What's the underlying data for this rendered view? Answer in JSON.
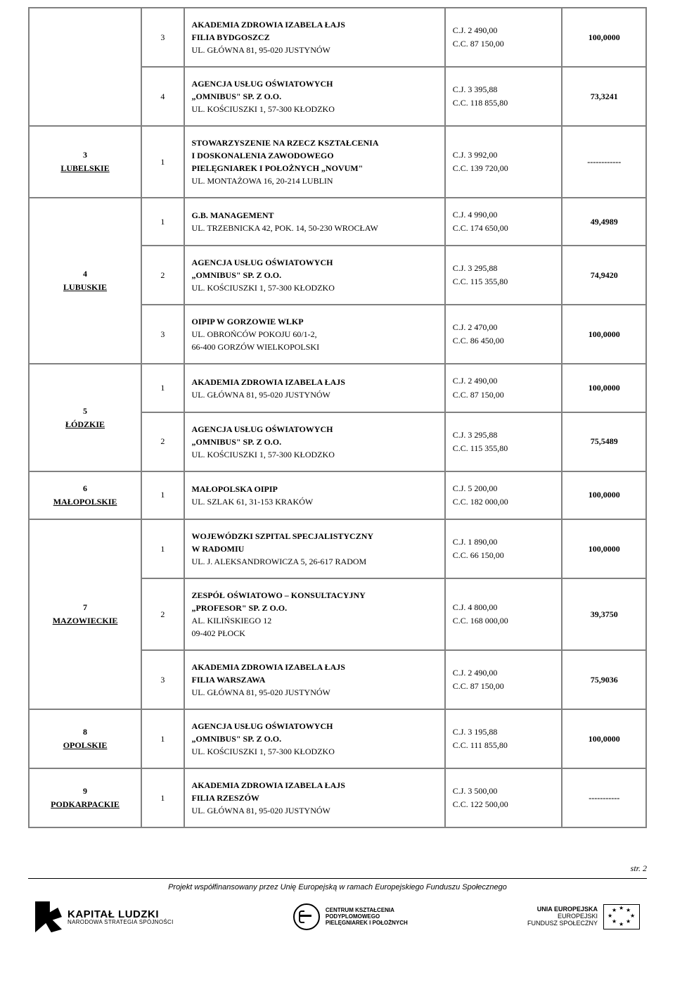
{
  "regions": [
    {
      "num": "",
      "name": "",
      "rows": [
        {
          "idx": "3",
          "desc_bold": [
            "AKADEMIA ZDROWIA IZABELA ŁAJS",
            "FILIA BYDGOSZCZ"
          ],
          "desc_addr": [
            "UL. GŁÓWNA 81, 95-020 JUSTYNÓW"
          ],
          "cj": "C.J.  2 490,00",
          "cc": "C.C. 87 150,00",
          "score": "100,0000"
        },
        {
          "idx": "4",
          "desc_bold": [
            "AGENCJA USŁUG OŚWIATOWYCH",
            "„OMNIBUS\" SP. Z O.O."
          ],
          "desc_addr": [
            "UL. KOŚCIUSZKI 1, 57-300 KŁODZKO"
          ],
          "cj": "C.J.  3 395,88",
          "cc": "C.C. 118 855,80",
          "score": "73,3241"
        }
      ]
    },
    {
      "num": "3",
      "name": "LUBELSKIE",
      "rows": [
        {
          "idx": "1",
          "desc_bold": [
            "STOWARZYSZENIE NA RZECZ KSZTAŁCENIA",
            "I DOSKONALENIA ZAWODOWEGO",
            "PIELĘGNIAREK I POŁOŻNYCH „NOVUM\""
          ],
          "desc_addr": [
            "UL. MONTAŻOWA 16, 20-214 LUBLIN"
          ],
          "cj": "C.J.  3 992,00",
          "cc": "C.C. 139 720,00",
          "score": "------------"
        }
      ]
    },
    {
      "num": "4",
      "name": "LUBUSKIE",
      "rows": [
        {
          "idx": "1",
          "desc_bold": [
            "G.B. MANAGEMENT"
          ],
          "desc_addr": [
            "UL. TRZEBNICKA 42, POK. 14, 50-230 WROCŁAW"
          ],
          "cj": "C.J.  4 990,00",
          "cc": "C.C. 174 650,00",
          "score": "49,4989"
        },
        {
          "idx": "2",
          "desc_bold": [
            "AGENCJA USŁUG OŚWIATOWYCH",
            "„OMNIBUS\" SP. Z O.O."
          ],
          "desc_addr": [
            "UL. KOŚCIUSZKI 1, 57-300 KŁODZKO"
          ],
          "cj": "C.J.  3 295,88",
          "cc": "C.C. 115 355,80",
          "score": "74,9420"
        },
        {
          "idx": "3",
          "desc_bold": [
            "OIPIP W GORZOWIE WLKP"
          ],
          "desc_addr": [
            "UL. OBROŃCÓW POKOJU 60/1-2,",
            "66-400 GORZÓW WIELKOPOLSKI"
          ],
          "cj": "C.J.  2 470,00",
          "cc": "C.C. 86 450,00",
          "score": "100,0000"
        }
      ]
    },
    {
      "num": "5",
      "name": "ŁÓDZKIE",
      "rows": [
        {
          "idx": "1",
          "desc_bold": [
            "AKADEMIA ZDROWIA IZABELA ŁAJS"
          ],
          "desc_addr": [
            "UL. GŁÓWNA 81, 95-020 JUSTYNÓW"
          ],
          "cj": "C.J.  2 490,00",
          "cc": "C.C. 87 150,00",
          "score": "100,0000"
        },
        {
          "idx": "2",
          "desc_bold": [
            "AGENCJA USŁUG OŚWIATOWYCH",
            "„OMNIBUS\" SP. Z O.O."
          ],
          "desc_addr": [
            "UL. KOŚCIUSZKI 1, 57-300 KŁODZKO"
          ],
          "cj": "C.J.  3 295,88",
          "cc": "C.C. 115 355,80",
          "score": "75,5489"
        }
      ]
    },
    {
      "num": "6",
      "name": "MAŁOPOLSKIE",
      "rows": [
        {
          "idx": "1",
          "desc_bold": [
            "MAŁOPOLSKA OIPIP"
          ],
          "desc_addr": [
            "UL. SZLAK 61, 31-153 KRAKÓW"
          ],
          "cj": "C.J.  5 200,00",
          "cc": "C.C. 182 000,00",
          "score": "100,0000"
        }
      ]
    },
    {
      "num": "7",
      "name": "MAZOWIECKIE",
      "rows": [
        {
          "idx": "1",
          "desc_bold": [
            "WOJEWÓDZKI SZPITAL SPECJALISTYCZNY",
            "W RADOMIU"
          ],
          "desc_addr": [
            "UL. J. ALEKSANDROWICZA 5, 26-617 RADOM"
          ],
          "cj": "C.J.  1 890,00",
          "cc": "C.C. 66 150,00",
          "score": "100,0000"
        },
        {
          "idx": "2",
          "desc_bold": [
            "ZESPÓŁ OŚWIATOWO – KONSULTACYJNY",
            "„PROFESOR\" SP. Z O.O."
          ],
          "desc_addr": [
            "AL. KILIŃSKIEGO 12",
            "09-402 PŁOCK"
          ],
          "cj": "C.J.  4 800,00",
          "cc": "C.C. 168 000,00",
          "score": "39,3750"
        },
        {
          "idx": "3",
          "desc_bold": [
            "AKADEMIA ZDROWIA IZABELA ŁAJS",
            "FILIA WARSZAWA"
          ],
          "desc_addr": [
            "UL. GŁÓWNA 81, 95-020 JUSTYNÓW"
          ],
          "cj": "C.J.  2 490,00",
          "cc": "C.C. 87 150,00",
          "score": "75,9036"
        }
      ]
    },
    {
      "num": "8",
      "name": "OPOLSKIE",
      "rows": [
        {
          "idx": "1",
          "desc_bold": [
            "AGENCJA USŁUG OŚWIATOWYCH",
            "„OMNIBUS\" SP. Z O.O."
          ],
          "desc_addr": [
            "UL. KOŚCIUSZKI 1, 57-300 KŁODZKO"
          ],
          "cj": "C.J.  3 195,88",
          "cc": "C.C. 111 855,80",
          "score": "100,0000"
        }
      ]
    },
    {
      "num": "9",
      "name": "PODKARPACKIE",
      "rows": [
        {
          "idx": "1",
          "desc_bold": [
            "AKADEMIA ZDROWIA IZABELA ŁAJS",
            "FILIA RZESZÓW"
          ],
          "desc_addr": [
            "UL. GŁÓWNA 81, 95-020 JUSTYNÓW"
          ],
          "cj": "C.J.  3 500,00",
          "cc": "C.C. 122 500,00",
          "score": "-----------"
        }
      ]
    }
  ],
  "footer": {
    "page": "str. 2",
    "cofund": "Projekt współfinansowany przez Unię Europejską w ramach Europejskiego Funduszu Społecznego",
    "kl1": "KAPITAŁ LUDZKI",
    "kl2": "NARODOWA STRATEGIA SPÓJNOŚCI",
    "ck1": "CENTRUM KSZTAŁCENIA",
    "ck2": "PODYPLOMOWEGO",
    "ck3": "PIELĘGNIAREK I POŁOŻNYCH",
    "ue1": "UNIA EUROPEJSKA",
    "ue2": "EUROPEJSKI",
    "ue3": "FUNDUSZ SPOŁECZNY"
  },
  "style": {
    "border_color": "#808080",
    "text_color": "#000000",
    "bg_color": "#ffffff"
  }
}
